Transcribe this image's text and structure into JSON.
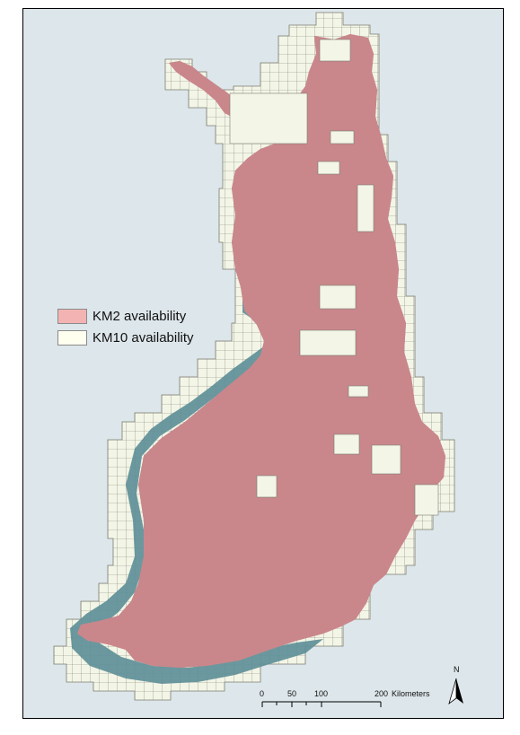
{
  "legend": {
    "items": [
      {
        "label": "KM2 availability",
        "color": "#f4b3b3"
      },
      {
        "label": "KM10 availability",
        "color": "#fffff0"
      }
    ]
  },
  "scale_bar": {
    "ticks": [
      "0",
      "50",
      "100",
      "200"
    ],
    "unit": "Kilometers"
  },
  "north_arrow": {
    "label": "N"
  },
  "colors": {
    "background": "#dde6ea",
    "km2_fill": "#c9878b",
    "km10_fill": "#f3f5e6",
    "coastal_band": "#5f8f98",
    "grid_line": "#6b6b6b"
  }
}
